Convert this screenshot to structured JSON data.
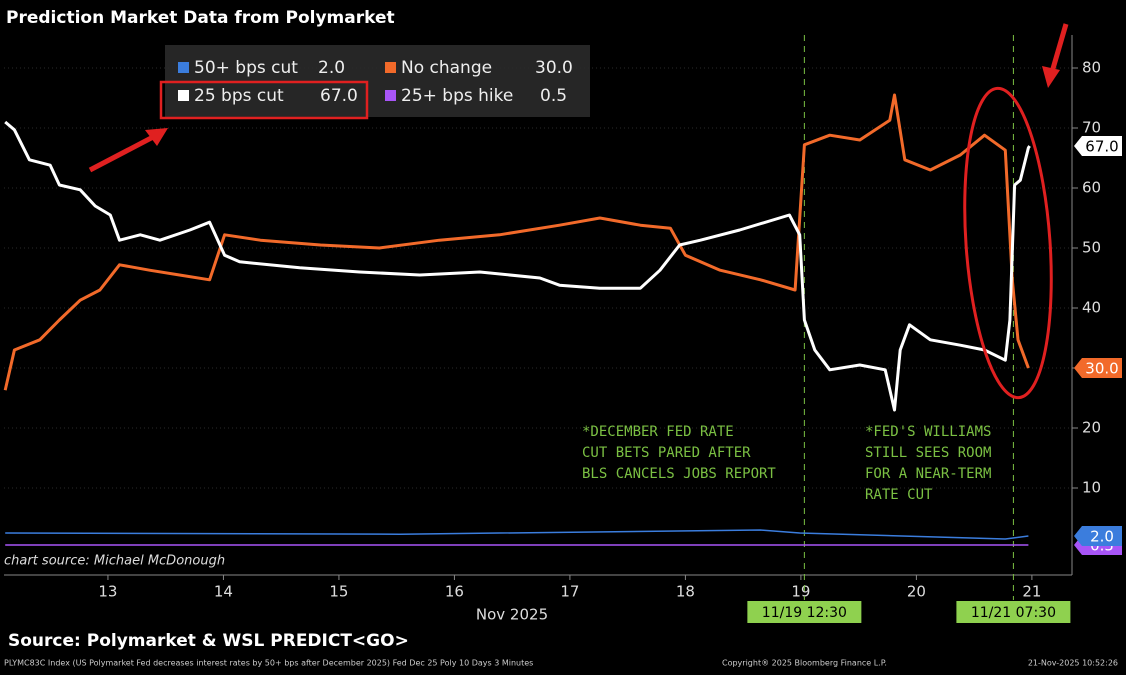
{
  "chart_data": {
    "type": "line",
    "title": "Prediction Market Data from Polymarket",
    "x_label": "Nov 2025",
    "credit": "chart source: Michael McDonough",
    "source": "Source: Polymarket & WSL PREDICT<GO>",
    "footer_left": "PLYMC83C Index (US Polymarket Fed decreases interest rates by 50+ bps after December 2025) Fed Dec 25 Poly 10 Days 3 Minutes",
    "footer_center": "Copyright® 2025 Bloomberg Finance L.P.",
    "footer_right": "21-Nov-2025 10:52:26",
    "xlim": [
      12.1,
      21.33
    ],
    "xticks": [
      13,
      14,
      15,
      16,
      17,
      18,
      19,
      20,
      21
    ],
    "ylim": [
      -4.5,
      85.5
    ],
    "yticks": [
      10,
      20,
      30,
      40,
      50,
      60,
      70,
      80
    ],
    "grid": true,
    "series": [
      {
        "name": "50+ bps cut",
        "color": "#3b7ddd",
        "value_label": "2.0",
        "x": [
          12.11,
          15.53,
          18.65,
          18.99,
          20.77,
          20.97
        ],
        "values": [
          2.5,
          2.3,
          3,
          2.5,
          1.5,
          2
        ]
      },
      {
        "name": "No change",
        "color": "#f26a2a",
        "value_label": "30.0",
        "x": [
          12.11,
          12.19,
          12.41,
          12.58,
          12.76,
          12.93,
          13.1,
          13.36,
          13.62,
          13.88,
          14.01,
          14.32,
          14.84,
          15.35,
          15.87,
          16.39,
          16.91,
          17.26,
          17.61,
          17.87,
          18.0,
          18.3,
          18.65,
          18.95,
          19.03,
          19.25,
          19.51,
          19.77,
          19.81,
          19.9,
          20.12,
          20.38,
          20.59,
          20.77,
          20.83,
          20.88,
          20.97
        ],
        "values": [
          26.3,
          33,
          34.7,
          38,
          41.3,
          43,
          47.2,
          46.3,
          45.5,
          44.7,
          52.2,
          51.3,
          50.5,
          50,
          51.3,
          52.2,
          53.8,
          55,
          53.8,
          53.3,
          48.8,
          46.3,
          44.7,
          43,
          67.2,
          68.8,
          68,
          71.3,
          75.5,
          64.7,
          63,
          65.5,
          68.8,
          66.3,
          44.7,
          34.7,
          30
        ]
      },
      {
        "name": "25 bps cut",
        "color": "#ffffff",
        "value_label": "67.0",
        "x": [
          12.11,
          12.19,
          12.32,
          12.5,
          12.58,
          12.76,
          12.89,
          13.02,
          13.1,
          13.28,
          13.45,
          13.71,
          13.88,
          14.01,
          14.14,
          14.66,
          15.18,
          15.7,
          16.22,
          16.74,
          16.91,
          17.26,
          17.61,
          17.78,
          17.95,
          18.13,
          18.47,
          18.9,
          18.99,
          19.03,
          19.12,
          19.25,
          19.51,
          19.73,
          19.81,
          19.86,
          19.94,
          20.12,
          20.38,
          20.59,
          20.77,
          20.81,
          20.85,
          20.9,
          20.97,
          20.98
        ],
        "values": [
          71,
          69.7,
          64.7,
          63.8,
          60.5,
          59.7,
          57,
          55.5,
          51.3,
          52.2,
          51.3,
          53,
          54.3,
          48.8,
          47.7,
          46.7,
          46,
          45.5,
          46,
          45,
          43.8,
          43.3,
          43.3,
          46.3,
          50.5,
          51.3,
          53,
          55.5,
          52.2,
          38,
          33,
          29.7,
          30.5,
          29.7,
          23,
          33,
          37.2,
          34.7,
          33.8,
          33,
          31.3,
          38,
          60.5,
          61.3,
          66.7,
          67
        ]
      },
      {
        "name": "25+ bps hike",
        "color": "#a855f7",
        "value_label": "0.5",
        "x": [
          12.11,
          20.97
        ],
        "values": [
          0.5,
          0.5
        ]
      }
    ],
    "events": [
      {
        "x": 19.03,
        "label": "11/19 12:30"
      },
      {
        "x": 20.84,
        "label": "11/21 07:30"
      }
    ],
    "annotations": [
      {
        "lines": [
          "*DECEMBER FED RATE",
          "CUT BETS PARED AFTER",
          "BLS CANCELS JOBS REPORT"
        ]
      },
      {
        "lines": [
          "*FED'S WILLIAMS",
          "STILL SEES ROOM",
          "FOR A NEAR-TERM",
          "RATE CUT"
        ]
      }
    ]
  }
}
